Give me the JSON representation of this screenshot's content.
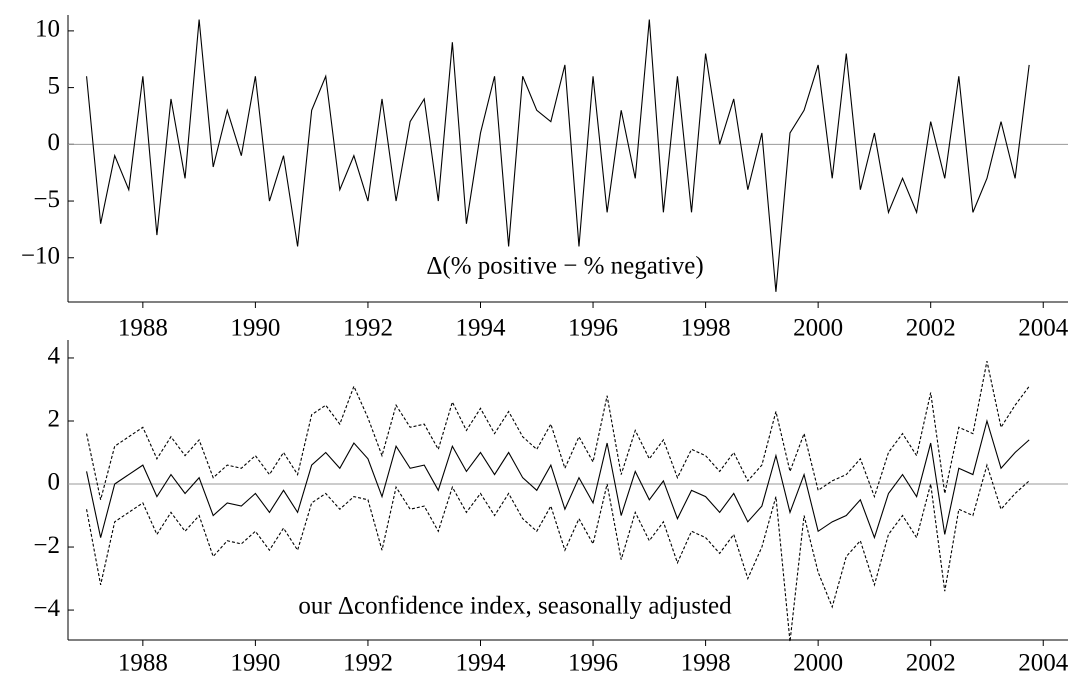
{
  "chart_data": [
    {
      "type": "line",
      "annotation": "Δ(% positive − % negative)",
      "x": [
        1987,
        1987.25,
        1987.5,
        1987.75,
        1988,
        1988.25,
        1988.5,
        1988.75,
        1989,
        1989.25,
        1989.5,
        1989.75,
        1990,
        1990.25,
        1990.5,
        1990.75,
        1991,
        1991.25,
        1991.5,
        1991.75,
        1992,
        1992.25,
        1992.5,
        1992.75,
        1993,
        1993.25,
        1993.5,
        1993.75,
        1994,
        1994.25,
        1994.5,
        1994.75,
        1995,
        1995.25,
        1995.5,
        1995.75,
        1996,
        1996.25,
        1996.5,
        1996.75,
        1997,
        1997.25,
        1997.5,
        1997.75,
        1998,
        1998.25,
        1998.5,
        1998.75,
        1999,
        1999.25,
        1999.5,
        1999.75,
        2000,
        2000.25,
        2000.5,
        2000.75,
        2001,
        2001.25,
        2001.5,
        2001.75,
        2002,
        2002.25,
        2002.5,
        2002.75,
        2003,
        2003.25,
        2003.5,
        2003.75
      ],
      "series": [
        {
          "color": "#000000",
          "style": "solid",
          "values": [
            6,
            -7,
            -1,
            -4,
            6,
            -8,
            4,
            -3,
            11,
            -2,
            3,
            -1,
            6,
            -5,
            -1,
            -9,
            3,
            6,
            -4,
            -1,
            -5,
            4,
            -5,
            2,
            4,
            -5,
            9,
            -7,
            1,
            6,
            -9,
            6,
            3,
            2,
            7,
            -9,
            6,
            -6,
            3,
            -3,
            11,
            -6,
            6,
            -6,
            8,
            0,
            4,
            -4,
            1,
            -13,
            1,
            3,
            7,
            -3,
            8,
            -4,
            1,
            -6,
            -3,
            -6,
            2,
            -3,
            6,
            -6,
            -3,
            2,
            -3,
            7
          ]
        }
      ],
      "reference_line": 0,
      "xlim": [
        1986.67,
        2004.44
      ],
      "xticks": [
        1988,
        1990,
        1992,
        1994,
        1996,
        1998,
        2000,
        2002,
        2004
      ],
      "ylim": [
        -13.9,
        11.4
      ],
      "yticks": [
        {
          "value": -10,
          "label": "−10"
        },
        {
          "value": -5,
          "label": "−5"
        },
        0,
        5,
        10
      ]
    },
    {
      "type": "line",
      "annotation": "our Δconfidence index, seasonally adjusted",
      "x": [
        1987,
        1987.25,
        1987.5,
        1987.75,
        1988,
        1988.25,
        1988.5,
        1988.75,
        1989,
        1989.25,
        1989.5,
        1989.75,
        1990,
        1990.25,
        1990.5,
        1990.75,
        1991,
        1991.25,
        1991.5,
        1991.75,
        1992,
        1992.25,
        1992.5,
        1992.75,
        1993,
        1993.25,
        1993.5,
        1993.75,
        1994,
        1994.25,
        1994.5,
        1994.75,
        1995,
        1995.25,
        1995.5,
        1995.75,
        1996,
        1996.25,
        1996.5,
        1996.75,
        1997,
        1997.25,
        1997.5,
        1997.75,
        1998,
        1998.25,
        1998.5,
        1998.75,
        1999,
        1999.25,
        1999.5,
        1999.75,
        2000,
        2000.25,
        2000.5,
        2000.75,
        2001,
        2001.25,
        2001.5,
        2001.75,
        2002,
        2002.25,
        2002.5,
        2002.75,
        2003,
        2003.25,
        2003.5,
        2003.75
      ],
      "series": [
        {
          "color": "#000000",
          "style": "solid",
          "values": [
            0.4,
            -1.7,
            0,
            0.3,
            0.6,
            -0.4,
            0.3,
            -0.3,
            0.2,
            -1,
            -0.6,
            -0.7,
            -0.3,
            -0.9,
            -0.2,
            -0.9,
            0.6,
            1,
            0.5,
            1.3,
            0.8,
            -0.4,
            1.2,
            0.5,
            0.6,
            -0.2,
            1.2,
            0.4,
            1,
            0.3,
            1,
            0.2,
            -0.2,
            0.6,
            -0.8,
            0.2,
            -0.6,
            1.3,
            -1,
            0.4,
            -0.5,
            0.1,
            -1.1,
            -0.2,
            -0.4,
            -0.9,
            -0.3,
            -1.2,
            -0.7,
            0.9,
            -0.9,
            0.3,
            -1.5,
            -1.2,
            -1,
            -0.5,
            -1.7,
            -0.3,
            0.3,
            -0.4,
            1.3,
            -1.6,
            0.5,
            0.3,
            2,
            0.5,
            1,
            1.4
          ]
        },
        {
          "color": "#000000",
          "style": "dashed",
          "values": [
            1.6,
            -0.5,
            1.2,
            1.5,
            1.8,
            0.8,
            1.5,
            0.9,
            1.4,
            0.2,
            0.6,
            0.5,
            0.9,
            0.3,
            1,
            0.3,
            2.2,
            2.5,
            1.9,
            3.1,
            2.1,
            0.9,
            2.5,
            1.8,
            1.9,
            1.1,
            2.6,
            1.7,
            2.4,
            1.6,
            2.3,
            1.5,
            1.1,
            1.9,
            0.5,
            1.5,
            0.7,
            2.8,
            0.3,
            1.7,
            0.8,
            1.4,
            0.2,
            1.1,
            0.9,
            0.4,
            1,
            0.1,
            0.6,
            2.3,
            0.4,
            1.6,
            -0.2,
            0.1,
            0.3,
            0.8,
            -0.4,
            1,
            1.6,
            0.9,
            2.9,
            -0.3,
            1.8,
            1.6,
            3.9,
            1.8,
            2.5,
            3.1
          ]
        },
        {
          "color": "#000000",
          "style": "dashed",
          "values": [
            -0.8,
            -3.2,
            -1.2,
            -0.9,
            -0.6,
            -1.6,
            -0.9,
            -1.5,
            -1,
            -2.3,
            -1.8,
            -1.9,
            -1.5,
            -2.1,
            -1.4,
            -2.1,
            -0.6,
            -0.3,
            -0.8,
            -0.4,
            -0.5,
            -2.1,
            -0.1,
            -0.8,
            -0.7,
            -1.5,
            -0.1,
            -0.9,
            -0.3,
            -1,
            -0.3,
            -1.1,
            -1.5,
            -0.7,
            -2.1,
            -1.1,
            -1.9,
            0,
            -2.4,
            -0.9,
            -1.8,
            -1.2,
            -2.5,
            -1.5,
            -1.7,
            -2.2,
            -1.6,
            -3,
            -2,
            -0.4,
            -5,
            -1,
            -2.8,
            -3.9,
            -2.3,
            -1.8,
            -3.2,
            -1.6,
            -1,
            -1.7,
            0,
            -3.4,
            -0.8,
            -1,
            0.6,
            -0.8,
            -0.3,
            0.1
          ]
        }
      ],
      "reference_line": 0,
      "xlim": [
        1986.67,
        2004.44
      ],
      "xticks": [
        1988,
        1990,
        1992,
        1994,
        1996,
        1998,
        2000,
        2002,
        2004
      ],
      "ylim": [
        -4.95,
        4.57
      ],
      "yticks": [
        {
          "value": -4,
          "label": "−4"
        },
        {
          "value": -2,
          "label": "−2"
        },
        0,
        2,
        4
      ]
    }
  ]
}
